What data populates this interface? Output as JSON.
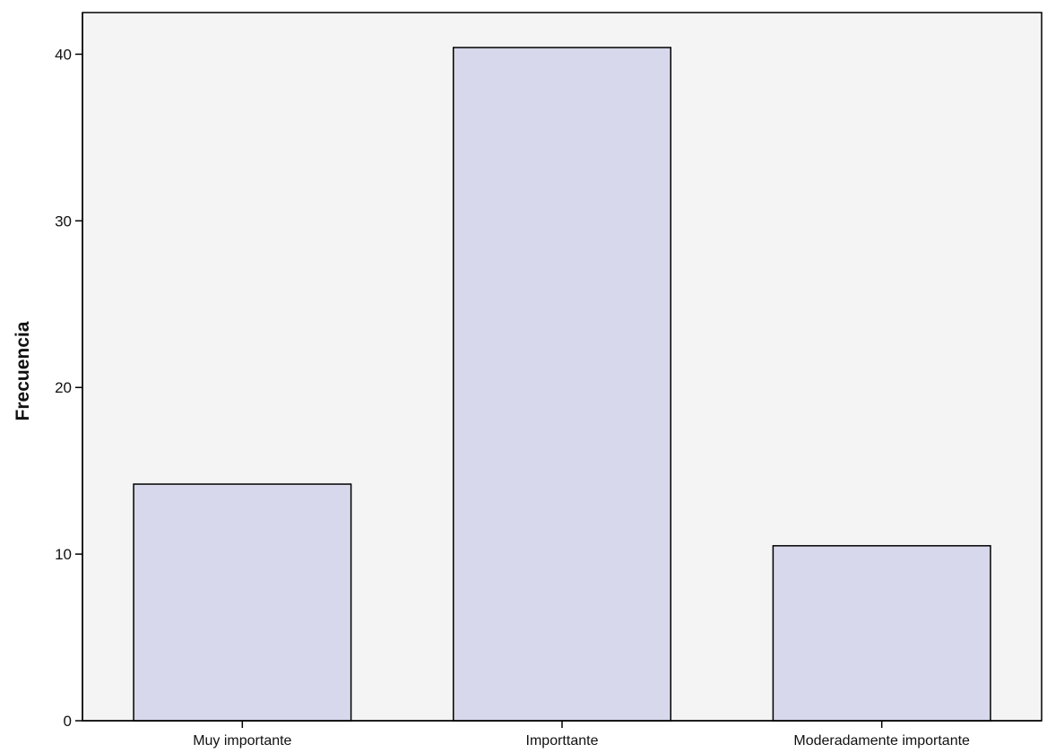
{
  "chart_data": {
    "type": "bar",
    "title": "",
    "xlabel": "",
    "ylabel": "Frecuencia",
    "categories": [
      "Muy importante",
      "Importtante",
      "Moderadamente importante"
    ],
    "values": [
      14.2,
      40.4,
      10.5
    ],
    "ylim": [
      0,
      42.5
    ],
    "yticks": [
      0,
      10,
      20,
      30,
      40
    ],
    "ytick_labels": [
      "0",
      "10",
      "20",
      "30",
      "40"
    ],
    "grid": false,
    "legend": "none",
    "colors": {
      "bar_fill": "#d8d8ec",
      "bar_stroke": "#000000",
      "plot_background": "#f4f4f4",
      "axis": "#000000"
    }
  }
}
